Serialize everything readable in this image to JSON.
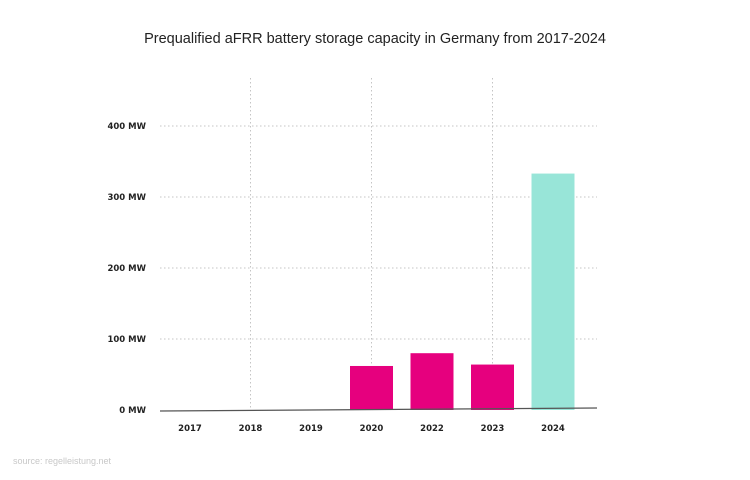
{
  "chart_data": {
    "type": "bar",
    "title": "Prequalified aFRR battery storage capacity in Germany from 2017-2024",
    "categories": [
      "2017",
      "2018",
      "2019",
      "2020",
      "2022",
      "2023",
      "2024"
    ],
    "values": [
      0,
      0,
      0,
      62,
      80,
      64,
      333
    ],
    "unit": "MW",
    "yticks": [
      0,
      100,
      200,
      300,
      400
    ],
    "ytick_labels": [
      "0 MW",
      "100 MW",
      "200 MW",
      "300 MW",
      "400 MW"
    ],
    "ylim": [
      0,
      460
    ],
    "grid": "dotted, horizontal + vertical",
    "bar_colors": [
      "#e6007e",
      "#e6007e",
      "#e6007e",
      "#e6007e",
      "#e6007e",
      "#e6007e",
      "#98e5d8"
    ],
    "legend": "none"
  },
  "source": "source: regelleistung.net"
}
